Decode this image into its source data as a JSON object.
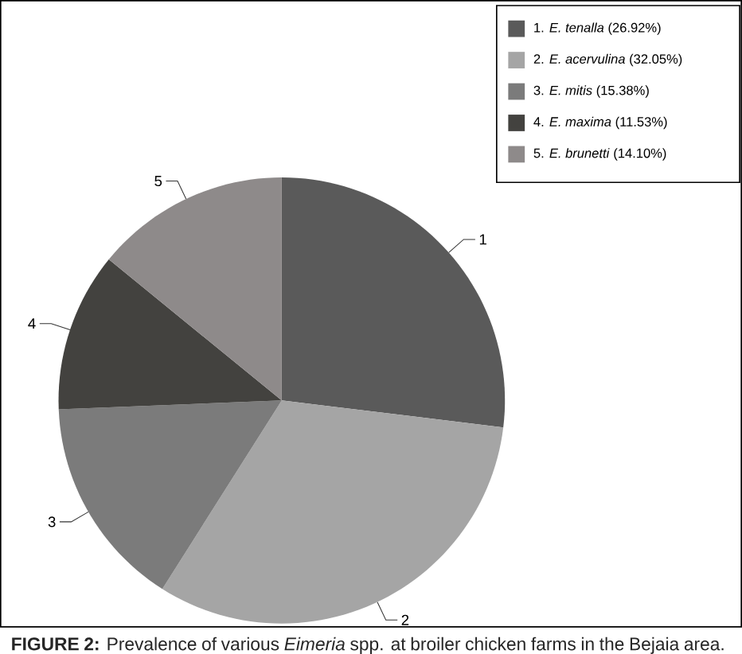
{
  "chart_data": {
    "type": "pie",
    "categories": [
      "1. *E. tenalla* (26.92%)",
      "2. *E. acervulina* (32.05%)",
      "3. *E. mitis* (15.38%)",
      "4. *E. maxima* (11.53%)",
      "5. *E. brunetti* (14.10%)"
    ],
    "values": [
      26.92,
      32.05,
      15.38,
      11.53,
      14.1
    ],
    "colors": [
      "#5a5a5a",
      "#a5a5a5",
      "#7b7b7b",
      "#43423f",
      "#8e8a8a"
    ],
    "legend": "top right",
    "annotations": [
      "**FIGURE 2:** Prevalence of various *Eimeria* spp. at broiler chicken farms in the Bejaia area.",
      {
        "text": "1",
        "x": "1. *E. tenalla* (26.92%)"
      },
      {
        "text": "2",
        "x": "2. *E. acervulina* (32.05%)"
      },
      {
        "text": "3",
        "x": "3. *E. mitis* (15.38%)"
      },
      {
        "text": "4",
        "x": "4. *E. maxima* (11.53%)"
      },
      {
        "text": "5",
        "x": "5. *E. brunetti* (14.10%)"
      }
    ]
  }
}
